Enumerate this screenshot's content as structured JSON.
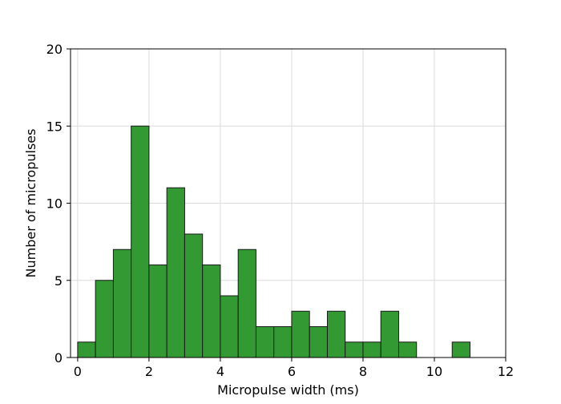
{
  "chart_data": {
    "type": "bar",
    "subtype": "histogram",
    "title": "",
    "xlabel": "Micropulse width (ms)",
    "ylabel": "Number of micropulses",
    "xlim": [
      -0.2,
      12
    ],
    "ylim": [
      0,
      20
    ],
    "bin_width": 0.5,
    "bin_starts": [
      0,
      0.5,
      1.0,
      1.5,
      2.0,
      2.5,
      3.0,
      3.5,
      4.0,
      4.5,
      5.0,
      5.5,
      6.0,
      6.5,
      7.0,
      7.5,
      8.0,
      8.5,
      9.0,
      9.5,
      10.0,
      10.5
    ],
    "values": [
      1,
      5,
      7,
      15,
      6,
      11,
      8,
      6,
      4,
      7,
      2,
      2,
      3,
      2,
      3,
      1,
      1,
      3,
      1,
      0,
      0,
      1
    ],
    "x_ticks": [
      "0",
      "2",
      "4",
      "6",
      "8",
      "10",
      "12"
    ],
    "y_ticks": [
      "0",
      "5",
      "10",
      "15",
      "20"
    ],
    "x_tick_values": [
      0,
      2,
      4,
      6,
      8,
      10,
      12
    ],
    "y_tick_values": [
      0,
      5,
      10,
      15,
      20
    ],
    "grid": true,
    "bar_color": "#339933",
    "bar_edge_color": "#1a1a1a",
    "grid_color": "#dcdcdc"
  }
}
